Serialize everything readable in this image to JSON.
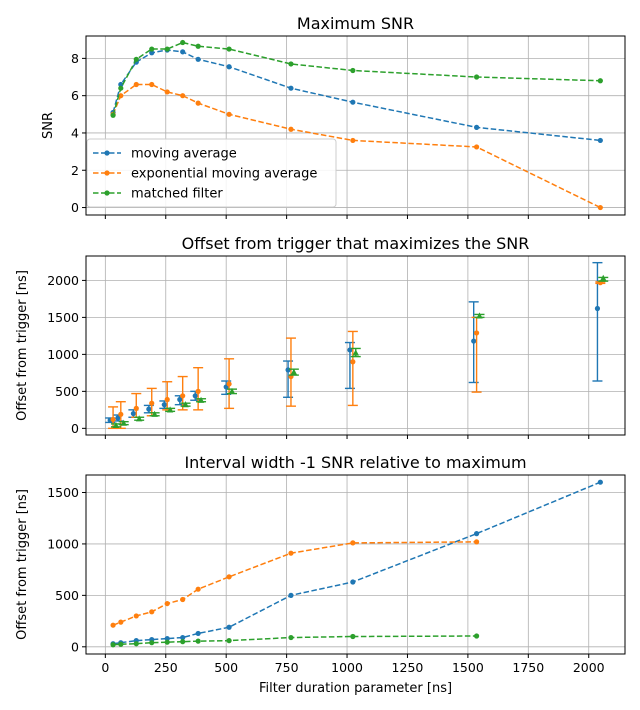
{
  "colors": {
    "moving_average": "#1f77b4",
    "ema": "#ff7f0e",
    "matched": "#2ca02c"
  },
  "chart_data": [
    {
      "type": "line",
      "title": "Maximum SNR",
      "xlabel": "",
      "ylabel": "SNR",
      "xlim": [
        -80,
        2150
      ],
      "ylim": [
        -0.4,
        9.2
      ],
      "xticks": [
        0,
        250,
        500,
        750,
        1000,
        1250,
        1500,
        1750,
        2000
      ],
      "yticks": [
        0,
        2,
        4,
        6,
        8
      ],
      "grid": true,
      "legend": "lower-left",
      "series": [
        {
          "name": "moving average",
          "color": "#1f77b4",
          "x": [
            32,
            64,
            128,
            192,
            256,
            320,
            384,
            512,
            768,
            1024,
            1536,
            2048
          ],
          "y": [
            5.1,
            6.6,
            7.8,
            8.3,
            8.45,
            8.35,
            7.95,
            7.55,
            6.4,
            5.65,
            4.3,
            3.6
          ]
        },
        {
          "name": "exponential moving average",
          "color": "#ff7f0e",
          "x": [
            32,
            64,
            128,
            192,
            256,
            320,
            384,
            512,
            768,
            1024,
            1536,
            2048
          ],
          "y": [
            5.0,
            6.0,
            6.6,
            6.6,
            6.2,
            6.0,
            5.6,
            5.0,
            4.2,
            3.6,
            3.25,
            0.0
          ]
        },
        {
          "name": "matched filter",
          "color": "#2ca02c",
          "x": [
            32,
            64,
            128,
            192,
            256,
            320,
            384,
            512,
            768,
            1024,
            1536,
            2048
          ],
          "y": [
            4.95,
            6.4,
            7.95,
            8.5,
            8.5,
            8.85,
            8.65,
            8.5,
            7.7,
            7.35,
            7.0,
            6.8
          ]
        }
      ]
    },
    {
      "type": "scatter",
      "title": "Offset from trigger that maximizes the SNR",
      "xlabel": "",
      "ylabel": "Offset from trigger [ns]",
      "xlim": [
        -80,
        2150
      ],
      "ylim": [
        -90,
        2330
      ],
      "xticks": [
        0,
        250,
        500,
        750,
        1000,
        1250,
        1500,
        1750,
        2000
      ],
      "yticks": [
        0,
        500,
        1000,
        1500,
        2000
      ],
      "grid": true,
      "series": [
        {
          "name": "",
          "color": "#1f77b4",
          "marker": "circle",
          "x": [
            20,
            52,
            116,
            180,
            244,
            308,
            372,
            500,
            756,
            1012,
            1524,
            2036
          ],
          "y": [
            110,
            140,
            200,
            260,
            320,
            390,
            440,
            560,
            790,
            1060,
            1180,
            1620
          ],
          "low": [
            80,
            100,
            150,
            210,
            270,
            320,
            380,
            460,
            420,
            540,
            620,
            640
          ],
          "high": [
            140,
            180,
            250,
            310,
            370,
            440,
            500,
            640,
            910,
            1160,
            1710,
            2240
          ]
        },
        {
          "name": "",
          "color": "#ff7f0e",
          "marker": "circle",
          "x": [
            32,
            64,
            128,
            192,
            256,
            320,
            384,
            512,
            768,
            1024,
            1536,
            2048
          ],
          "y": [
            120,
            190,
            270,
            340,
            390,
            440,
            500,
            600,
            700,
            900,
            1290,
            1970
          ],
          "low": [
            0,
            0,
            150,
            170,
            250,
            250,
            250,
            270,
            300,
            310,
            490,
            1960
          ],
          "high": [
            290,
            360,
            470,
            540,
            630,
            700,
            820,
            940,
            1220,
            1310,
            1500,
            1980
          ]
        },
        {
          "name": "",
          "color": "#2ca02c",
          "marker": "triangle",
          "x": [
            44,
            76,
            140,
            204,
            268,
            332,
            396,
            524,
            780,
            1036,
            1548,
            2060
          ],
          "y": [
            40,
            70,
            130,
            190,
            250,
            320,
            380,
            500,
            760,
            1020,
            1520,
            2030
          ],
          "low": [
            20,
            50,
            110,
            170,
            230,
            300,
            360,
            470,
            720,
            970,
            1500,
            1990
          ],
          "high": [
            60,
            90,
            150,
            210,
            270,
            340,
            400,
            530,
            800,
            1080,
            1540,
            2040
          ]
        }
      ]
    },
    {
      "type": "line",
      "title": "Interval width -1 SNR relative to maximum",
      "xlabel": "Filter duration parameter [ns]",
      "ylabel": "Offset from trigger [ns]",
      "xlim": [
        -80,
        2150
      ],
      "ylim": [
        -70,
        1670
      ],
      "xticks": [
        0,
        250,
        500,
        750,
        1000,
        1250,
        1500,
        1750,
        2000
      ],
      "yticks": [
        0,
        500,
        1000,
        1500
      ],
      "grid": true,
      "series": [
        {
          "name": "moving average",
          "color": "#1f77b4",
          "x": [
            32,
            64,
            128,
            192,
            256,
            320,
            384,
            512,
            768,
            1024,
            1536,
            2048
          ],
          "y": [
            30,
            40,
            60,
            70,
            80,
            90,
            130,
            190,
            500,
            630,
            1100,
            1600
          ]
        },
        {
          "name": "exponential moving average",
          "color": "#ff7f0e",
          "x": [
            32,
            64,
            128,
            192,
            256,
            320,
            384,
            512,
            768,
            1024,
            1536
          ],
          "y": [
            210,
            240,
            300,
            340,
            420,
            460,
            560,
            680,
            910,
            1010,
            1020
          ]
        },
        {
          "name": "matched filter",
          "color": "#2ca02c",
          "x": [
            32,
            64,
            128,
            192,
            256,
            320,
            384,
            512,
            768,
            1024,
            1536
          ],
          "y": [
            20,
            25,
            30,
            40,
            45,
            50,
            55,
            60,
            90,
            100,
            105
          ]
        }
      ]
    }
  ]
}
